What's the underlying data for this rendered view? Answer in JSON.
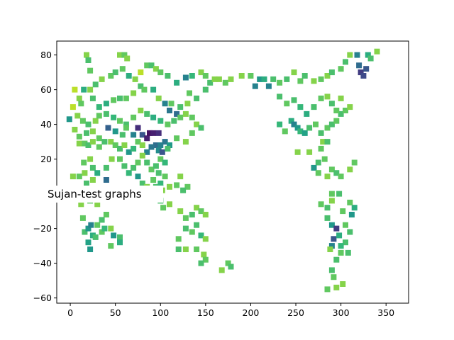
{
  "chart_data": {
    "type": "scatter",
    "marker": "square",
    "colormap": "viridis",
    "xlim": [
      -15,
      375
    ],
    "ylim": [
      -63,
      88
    ],
    "xticks": [
      0,
      50,
      100,
      150,
      200,
      250,
      300,
      350
    ],
    "yticks": [
      -60,
      -40,
      -20,
      0,
      20,
      40,
      60,
      80
    ],
    "grid": false,
    "overlay_label": "Sujan-test graphs",
    "colors": {
      "yellow": "#dde318",
      "yellow_green": "#b5de2b",
      "light_green": "#7ad151",
      "green": "#4ac16d",
      "teal_green": "#22a884",
      "teal": "#1f988b",
      "blue": "#31688e",
      "indigo": "#3b528b",
      "purple": "#482878",
      "dark_purple": "#440154"
    },
    "points": [
      [
        18,
        80,
        0.9
      ],
      [
        20,
        77,
        0.8
      ],
      [
        22,
        71,
        0.85
      ],
      [
        15,
        60,
        0.7
      ],
      [
        22,
        60,
        0.9
      ],
      [
        5,
        60,
        0.95
      ],
      [
        28,
        63,
        0.8
      ],
      [
        35,
        66,
        0.9
      ],
      [
        45,
        68,
        0.85
      ],
      [
        55,
        80,
        0.9
      ],
      [
        60,
        80,
        0.85
      ],
      [
        63,
        78,
        0.9
      ],
      [
        50,
        70,
        0.8
      ],
      [
        58,
        72,
        0.85
      ],
      [
        65,
        68,
        0.7
      ],
      [
        72,
        66,
        0.9
      ],
      [
        78,
        70,
        0.95
      ],
      [
        85,
        74,
        0.85
      ],
      [
        90,
        74,
        0.8
      ],
      [
        95,
        72,
        0.9
      ],
      [
        100,
        70,
        0.85
      ],
      [
        108,
        68,
        0.8
      ],
      [
        118,
        64,
        0.7
      ],
      [
        128,
        67,
        0.5
      ],
      [
        135,
        68,
        0.75
      ],
      [
        145,
        70,
        0.9
      ],
      [
        150,
        68,
        0.85
      ],
      [
        155,
        64,
        0.8
      ],
      [
        160,
        66,
        0.9
      ],
      [
        165,
        66,
        0.9
      ],
      [
        172,
        64,
        0.85
      ],
      [
        178,
        66,
        0.9
      ],
      [
        190,
        68,
        0.9
      ],
      [
        200,
        68,
        0.85
      ],
      [
        205,
        62,
        0.5
      ],
      [
        210,
        66,
        0.6
      ],
      [
        215,
        66,
        0.7
      ],
      [
        220,
        62,
        0.5
      ],
      [
        225,
        66,
        0.8
      ],
      [
        232,
        64,
        0.85
      ],
      [
        240,
        66,
        0.8
      ],
      [
        248,
        70,
        0.9
      ],
      [
        255,
        65,
        0.85
      ],
      [
        260,
        68,
        0.8
      ],
      [
        270,
        65,
        0.9
      ],
      [
        278,
        66,
        0.85
      ],
      [
        285,
        68,
        0.9
      ],
      [
        290,
        70,
        0.8
      ],
      [
        300,
        72,
        0.85
      ],
      [
        305,
        76,
        0.8
      ],
      [
        310,
        80,
        0.9
      ],
      [
        318,
        80,
        0.5
      ],
      [
        322,
        70,
        0.2
      ],
      [
        325,
        68,
        0.25
      ],
      [
        328,
        72,
        0.3
      ],
      [
        320,
        74,
        0.4
      ],
      [
        330,
        80,
        0.7
      ],
      [
        340,
        82,
        0.9
      ],
      [
        333,
        78,
        0.8
      ],
      [
        10,
        55,
        0.9
      ],
      [
        12,
        52,
        0.85
      ],
      [
        25,
        55,
        0.8
      ],
      [
        32,
        50,
        0.75
      ],
      [
        40,
        52,
        0.7
      ],
      [
        48,
        54,
        0.85
      ],
      [
        55,
        55,
        0.8
      ],
      [
        62,
        55,
        0.85
      ],
      [
        70,
        58,
        0.9
      ],
      [
        78,
        62,
        0.8
      ],
      [
        82,
        60,
        0.85
      ],
      [
        92,
        60,
        0.7
      ],
      [
        98,
        55,
        0.9
      ],
      [
        105,
        52,
        0.5
      ],
      [
        110,
        48,
        0.45
      ],
      [
        118,
        46,
        0.4
      ],
      [
        112,
        52,
        0.85
      ],
      [
        122,
        50,
        0.8
      ],
      [
        130,
        52,
        0.9
      ],
      [
        132,
        58,
        0.85
      ],
      [
        140,
        55,
        0.8
      ],
      [
        150,
        60,
        0.8
      ],
      [
        3,
        50,
        0.95
      ],
      [
        8,
        45,
        0.9
      ],
      [
        14,
        42,
        0.85
      ],
      [
        20,
        40,
        0.8
      ],
      [
        28,
        42,
        0.9
      ],
      [
        32,
        45,
        0.85
      ],
      [
        40,
        46,
        0.8
      ],
      [
        48,
        44,
        0.75
      ],
      [
        55,
        42,
        0.85
      ],
      [
        62,
        40,
        0.8
      ],
      [
        70,
        44,
        0.85
      ],
      [
        78,
        48,
        0.9
      ],
      [
        85,
        46,
        0.8
      ],
      [
        92,
        44,
        0.7
      ],
      [
        100,
        42,
        0.75
      ],
      [
        108,
        40,
        0.85
      ],
      [
        115,
        42,
        0.8
      ],
      [
        122,
        44,
        0.85
      ],
      [
        128,
        46,
        0.9
      ],
      [
        135,
        44,
        0.85
      ],
      [
        140,
        40,
        0.9
      ],
      [
        145,
        38,
        0.8
      ],
      [
        -1,
        43,
        0.6
      ],
      [
        5,
        37,
        0.9
      ],
      [
        10,
        33,
        0.85
      ],
      [
        18,
        35,
        0.8
      ],
      [
        25,
        36,
        0.9
      ],
      [
        32,
        32,
        0.85
      ],
      [
        42,
        38,
        0.35
      ],
      [
        50,
        36,
        0.6
      ],
      [
        58,
        34,
        0.8
      ],
      [
        62,
        38,
        0.85
      ],
      [
        70,
        34,
        0.5
      ],
      [
        75,
        38,
        0.15
      ],
      [
        80,
        34,
        0.3
      ],
      [
        85,
        32,
        0.1
      ],
      [
        88,
        35,
        0.05
      ],
      [
        92,
        35,
        0.1
      ],
      [
        98,
        35,
        0.15
      ],
      [
        95,
        28,
        0.4
      ],
      [
        100,
        28,
        0.5
      ],
      [
        105,
        30,
        0.45
      ],
      [
        110,
        28,
        0.6
      ],
      [
        118,
        32,
        0.85
      ],
      [
        128,
        30,
        0.9
      ],
      [
        135,
        35,
        0.85
      ],
      [
        10,
        29,
        0.9
      ],
      [
        16,
        29,
        0.85
      ],
      [
        20,
        28,
        0.8
      ],
      [
        25,
        30,
        0.9
      ],
      [
        32,
        27,
        0.85
      ],
      [
        38,
        30,
        0.8
      ],
      [
        45,
        30,
        0.9
      ],
      [
        50,
        28,
        0.85
      ],
      [
        55,
        26,
        0.8
      ],
      [
        60,
        28,
        0.9
      ],
      [
        65,
        24,
        0.6
      ],
      [
        70,
        26,
        0.75
      ],
      [
        75,
        30,
        0.85
      ],
      [
        80,
        28,
        0.9
      ],
      [
        85,
        24,
        0.5
      ],
      [
        90,
        27,
        0.45
      ],
      [
        98,
        25,
        0.55
      ],
      [
        102,
        24,
        0.3
      ],
      [
        108,
        26,
        0.8
      ],
      [
        22,
        20,
        0.9
      ],
      [
        15,
        18,
        0.85
      ],
      [
        25,
        15,
        0.8
      ],
      [
        30,
        12,
        0.7
      ],
      [
        40,
        15,
        0.8
      ],
      [
        46,
        20,
        0.9
      ],
      [
        55,
        20,
        0.85
      ],
      [
        60,
        16,
        0.8
      ],
      [
        65,
        12,
        0.75
      ],
      [
        70,
        15,
        0.8
      ],
      [
        75,
        18,
        0.85
      ],
      [
        80,
        22,
        0.9
      ],
      [
        85,
        18,
        0.8
      ],
      [
        90,
        14,
        0.85
      ],
      [
        95,
        16,
        0.8
      ],
      [
        100,
        20,
        0.85
      ],
      [
        105,
        18,
        0.75
      ],
      [
        98,
        12,
        0.8
      ],
      [
        105,
        10,
        0.85
      ],
      [
        3,
        10,
        0.9
      ],
      [
        10,
        10,
        0.85
      ],
      [
        16,
        12,
        0.9
      ],
      [
        18,
        6,
        0.8
      ],
      [
        20,
        2,
        0.85
      ],
      [
        25,
        8,
        0.9
      ],
      [
        40,
        8,
        0.4
      ],
      [
        75,
        10,
        0.6
      ],
      [
        80,
        6,
        0.8
      ],
      [
        85,
        4,
        0.9
      ],
      [
        92,
        8,
        0.85
      ],
      [
        95,
        4,
        0.8
      ],
      [
        100,
        6,
        0.75
      ],
      [
        102,
        2,
        0.9
      ],
      [
        98,
        0,
        0.85
      ],
      [
        110,
        4,
        0.9
      ],
      [
        118,
        5,
        0.85
      ],
      [
        122,
        10,
        0.9
      ],
      [
        130,
        4,
        0.85
      ],
      [
        125,
        2,
        0.8
      ],
      [
        12,
        -6,
        0.9
      ],
      [
        22,
        -4,
        0.85
      ],
      [
        30,
        -6,
        0.9
      ],
      [
        100,
        -4,
        0.8
      ],
      [
        103,
        -8,
        0.85
      ],
      [
        110,
        -6,
        0.9
      ],
      [
        14,
        -14,
        0.85
      ],
      [
        16,
        -22,
        0.8
      ],
      [
        20,
        -20,
        0.6
      ],
      [
        23,
        -18,
        0.5
      ],
      [
        25,
        -24,
        0.7
      ],
      [
        20,
        -28,
        0.65
      ],
      [
        28,
        -25,
        0.8
      ],
      [
        35,
        -22,
        0.85
      ],
      [
        38,
        -20,
        0.75
      ],
      [
        30,
        -18,
        0.85
      ],
      [
        45,
        -20,
        0.9
      ],
      [
        48,
        -24,
        0.6
      ],
      [
        55,
        -25,
        0.8
      ],
      [
        22,
        -32,
        0.6
      ],
      [
        45,
        -30,
        0.85
      ],
      [
        55,
        -28,
        0.7
      ],
      [
        35,
        -15,
        0.8
      ],
      [
        40,
        -12,
        0.85
      ],
      [
        122,
        -10,
        0.9
      ],
      [
        128,
        -14,
        0.85
      ],
      [
        135,
        -12,
        0.8
      ],
      [
        140,
        -8,
        0.9
      ],
      [
        145,
        -10,
        0.85
      ],
      [
        150,
        -12,
        0.9
      ],
      [
        128,
        -20,
        0.8
      ],
      [
        135,
        -22,
        0.85
      ],
      [
        140,
        -18,
        0.8
      ],
      [
        145,
        -24,
        0.75
      ],
      [
        150,
        -26,
        0.9
      ],
      [
        120,
        -26,
        0.85
      ],
      [
        128,
        -32,
        0.9
      ],
      [
        120,
        -32,
        0.8
      ],
      [
        140,
        -32,
        0.85
      ],
      [
        148,
        -35,
        0.9
      ],
      [
        150,
        -38,
        0.85
      ],
      [
        145,
        -40,
        0.8
      ],
      [
        168,
        -44,
        0.9
      ],
      [
        175,
        -40,
        0.85
      ],
      [
        178,
        -42,
        0.8
      ],
      [
        278,
        -6,
        0.85
      ],
      [
        285,
        -8,
        0.8
      ],
      [
        290,
        -4,
        0.9
      ],
      [
        290,
        0,
        0.85
      ],
      [
        298,
        0,
        0.8
      ],
      [
        302,
        -10,
        0.85
      ],
      [
        285,
        -14,
        0.8
      ],
      [
        290,
        -18,
        0.6
      ],
      [
        295,
        -20,
        0.2
      ],
      [
        292,
        -26,
        0.3
      ],
      [
        290,
        -30,
        0.5
      ],
      [
        298,
        -24,
        0.7
      ],
      [
        305,
        -18,
        0.85
      ],
      [
        310,
        -22,
        0.8
      ],
      [
        312,
        -12,
        0.6
      ],
      [
        315,
        -8,
        0.7
      ],
      [
        310,
        -5,
        0.85
      ],
      [
        305,
        -28,
        0.8
      ],
      [
        300,
        -34,
        0.85
      ],
      [
        295,
        -38,
        0.8
      ],
      [
        288,
        -32,
        0.9
      ],
      [
        292,
        -48,
        0.85
      ],
      [
        295,
        -54,
        0.9
      ],
      [
        290,
        -44,
        0.8
      ],
      [
        285,
        -55,
        0.85
      ],
      [
        302,
        -52,
        0.9
      ],
      [
        300,
        -30,
        0.75
      ],
      [
        308,
        -34,
        0.8
      ],
      [
        280,
        30,
        0.9
      ],
      [
        278,
        26,
        0.85
      ],
      [
        285,
        30,
        0.8
      ],
      [
        282,
        20,
        0.85
      ],
      [
        275,
        18,
        0.8
      ],
      [
        270,
        15,
        0.6
      ],
      [
        275,
        12,
        0.85
      ],
      [
        285,
        10,
        0.9
      ],
      [
        290,
        14,
        0.85
      ],
      [
        295,
        12,
        0.8
      ],
      [
        300,
        10,
        0.85
      ],
      [
        310,
        14,
        0.9
      ],
      [
        315,
        18,
        0.85
      ],
      [
        232,
        40,
        0.75
      ],
      [
        238,
        36,
        0.85
      ],
      [
        245,
        42,
        0.7
      ],
      [
        248,
        40,
        0.5
      ],
      [
        252,
        38,
        0.6
      ],
      [
        255,
        36,
        0.75
      ],
      [
        260,
        35,
        0.65
      ],
      [
        265,
        38,
        0.8
      ],
      [
        272,
        40,
        0.85
      ],
      [
        278,
        35,
        0.8
      ],
      [
        285,
        38,
        0.85
      ],
      [
        290,
        40,
        0.8
      ],
      [
        295,
        42,
        0.85
      ],
      [
        300,
        46,
        0.8
      ],
      [
        305,
        48,
        0.85
      ],
      [
        310,
        50,
        0.9
      ],
      [
        232,
        56,
        0.8
      ],
      [
        240,
        52,
        0.85
      ],
      [
        248,
        54,
        0.8
      ],
      [
        255,
        50,
        0.75
      ],
      [
        262,
        46,
        0.7
      ],
      [
        270,
        50,
        0.8
      ],
      [
        278,
        55,
        0.85
      ],
      [
        285,
        56,
        0.9
      ],
      [
        290,
        52,
        0.8
      ],
      [
        295,
        48,
        0.85
      ],
      [
        300,
        55,
        0.9
      ],
      [
        252,
        24,
        0.9
      ],
      [
        265,
        24,
        0.9
      ]
    ]
  }
}
